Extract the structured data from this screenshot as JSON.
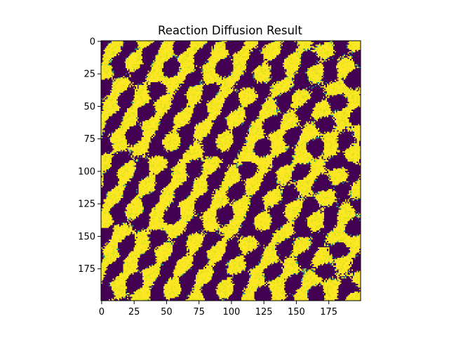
{
  "chart_data": {
    "type": "heatmap",
    "title": "Reaction Diffusion Result",
    "xlabel": "",
    "ylabel": "",
    "grid_size": [
      200,
      200
    ],
    "xlim": [
      -0.5,
      199.5
    ],
    "ylim": [
      199.5,
      -0.5
    ],
    "x_ticks": [
      0,
      25,
      50,
      75,
      100,
      125,
      150,
      175
    ],
    "y_ticks": [
      0,
      25,
      50,
      75,
      100,
      125,
      150,
      175
    ],
    "x_tick_labels": [
      "0",
      "25",
      "50",
      "75",
      "100",
      "125",
      "150",
      "175"
    ],
    "y_tick_labels": [
      "0",
      "25",
      "50",
      "75",
      "100",
      "125",
      "150",
      "175"
    ],
    "colormap": "viridis",
    "colors": {
      "low": "#440154",
      "mid": "#21918c",
      "high": "#fde725",
      "high_alt": "#dde318"
    },
    "pattern": "diagonal stripes of two dominant states (dark purple and yellow) with scattered teal/green intermediate cells",
    "grid": false,
    "legend": "none"
  }
}
